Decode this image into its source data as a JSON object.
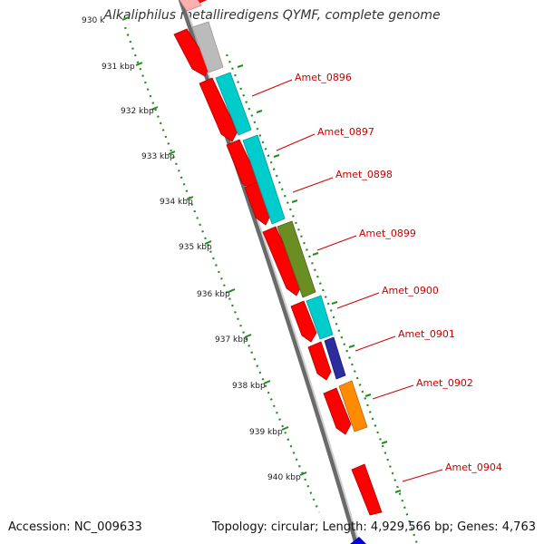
{
  "title": "Alkaliphilus metalliredigens QYMF, complete genome",
  "accession": "Accession: NC_009633",
  "topology": "Topology: circular; Length: 4,929,566 bp; Genes: 4,763",
  "colors": {
    "cds_red": "#ff0000",
    "cyan": "#00cccc",
    "gray": "#bbbbbb",
    "olive": "#6b8e23",
    "navy": "#2c2ca0",
    "orange": "#ff8c00",
    "blue": "#0000dd",
    "tick_green": "#228b22",
    "label_red": "#cc0000"
  },
  "ticks": [
    "930 k",
    "931 kbp",
    "932 kbp",
    "933 kbp",
    "934 kbp",
    "935 kbp",
    "936 kbp",
    "937 kbp",
    "938 kbp",
    "939 kbp",
    "940 kbp"
  ],
  "gene_labels": [
    "Amet_0896",
    "Amet_0897",
    "Amet_0898",
    "Amet_0899",
    "Amet_0900",
    "Amet_0901",
    "Amet_0902",
    "Amet_0904"
  ]
}
